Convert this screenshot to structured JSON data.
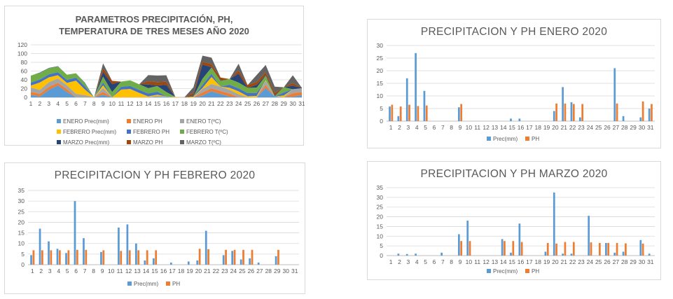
{
  "colors": {
    "enero_prec": "#5B9BD5",
    "enero_ph": "#ED7D31",
    "enero_t": "#A5A5A5",
    "febrero_prec": "#FFC000",
    "febrero_ph": "#4472C4",
    "febrero_t": "#70AD47",
    "marzo_prec": "#264478",
    "marzo_ph": "#9E480E",
    "marzo_t": "#636363",
    "grid": "#D9D9D9",
    "text": "#595959"
  },
  "chart_data": [
    {
      "type": "area",
      "title": "PARAMETROS PRECIPITACIÓN, PH, TEMPERATURA DE TRES MESES AÑO 2020",
      "title_line1": "PARAMETROS PRECIPITACIÓN, PH,",
      "title_line2": "TEMPERATURA DE TRES MESES AÑO 2020",
      "stacked": true,
      "x": [
        1,
        2,
        3,
        4,
        5,
        6,
        7,
        8,
        9,
        10,
        11,
        12,
        13,
        14,
        15,
        16,
        17,
        18,
        19,
        20,
        21,
        22,
        23,
        24,
        25,
        26,
        27,
        28,
        29,
        30,
        31
      ],
      "ylim": [
        0,
        120
      ],
      "yticks": [
        0,
        20,
        40,
        60,
        80,
        100,
        120
      ],
      "grid": true,
      "legend_position": "bottom",
      "series": [
        {
          "name": "ENERO Prec(mm)",
          "color": "#5B9BD5",
          "values": [
            5.8,
            2,
            17,
            27,
            12,
            0,
            0,
            0,
            5.5,
            0,
            0,
            0,
            0,
            0,
            1,
            1,
            0,
            0,
            0,
            4,
            13.5,
            7.5,
            1.5,
            0,
            0,
            0,
            21,
            2,
            0,
            1.5,
            5
          ]
        },
        {
          "name": "ENERO PH",
          "color": "#ED7D31",
          "values": [
            6.5,
            5.8,
            6.5,
            6,
            6.2,
            0,
            0,
            0,
            6.8,
            0,
            0,
            0,
            0,
            0,
            0,
            0,
            0,
            0,
            0,
            7,
            7,
            6.8,
            6.8,
            0,
            0,
            0,
            7,
            0,
            0,
            7.8,
            6.8
          ]
        },
        {
          "name": "ENERO T(ºC)",
          "color": "#A5A5A5",
          "values": [
            10,
            9,
            11,
            10,
            9,
            8,
            5,
            0,
            9,
            0,
            0,
            0,
            0,
            0,
            2,
            1,
            0,
            0,
            0,
            8,
            10,
            10,
            9,
            7,
            0,
            0,
            10,
            0,
            0,
            9,
            9
          ]
        },
        {
          "name": "FEBRERO Prec(mm)",
          "color": "#FFC000",
          "values": [
            4.5,
            17,
            11,
            7.5,
            5.5,
            30,
            12.5,
            0,
            6,
            0,
            17.5,
            19,
            10,
            2,
            3,
            0,
            1,
            0,
            1.5,
            2,
            16,
            0,
            4.5,
            6.5,
            2.5,
            3,
            1,
            0,
            4,
            0,
            0
          ]
        },
        {
          "name": "FEBRERO PH",
          "color": "#4472C4",
          "values": [
            6.8,
            6.8,
            6.8,
            6.8,
            6.8,
            7,
            7,
            0,
            6.8,
            0,
            6.5,
            6.8,
            6.8,
            6.8,
            6.8,
            0,
            0,
            0,
            0,
            7.5,
            7.3,
            0,
            7,
            7,
            7,
            7,
            0,
            0,
            7,
            0,
            0
          ]
        },
        {
          "name": "FEBRERO T(ºC)",
          "color": "#70AD47",
          "values": [
            16,
            15,
            14,
            13,
            12,
            10,
            7,
            0,
            13,
            12,
            12,
            13,
            13,
            12,
            13,
            10,
            0,
            0,
            0,
            14,
            14,
            13,
            13,
            13,
            12,
            12,
            10,
            0,
            12,
            0,
            0
          ]
        },
        {
          "name": "MARZO Prec(mm)",
          "color": "#264478",
          "values": [
            0,
            1,
            0.8,
            1,
            0,
            0,
            1.5,
            0,
            11,
            18,
            0,
            0,
            0,
            8.5,
            1.5,
            16.5,
            0,
            0,
            2,
            32.5,
            1,
            1,
            0,
            20.5,
            0,
            6.5,
            1.5,
            2,
            0,
            8,
            1
          ]
        },
        {
          "name": "MARZO PH",
          "color": "#9E480E",
          "values": [
            0,
            0,
            0,
            0,
            0,
            0,
            0,
            0,
            7.5,
            7.5,
            0,
            0,
            0,
            7.5,
            7.5,
            7,
            0,
            0,
            6.5,
            6.2,
            7,
            7,
            0,
            6.8,
            6.5,
            6.5,
            6.5,
            6.3,
            0,
            6.2,
            0
          ]
        },
        {
          "name": "MARZO T(ºC)",
          "color": "#636363",
          "values": [
            0,
            0,
            0,
            0,
            0,
            0,
            0,
            0,
            12,
            0,
            0,
            0,
            0,
            14,
            15,
            15,
            0,
            0,
            13,
            14,
            15,
            0,
            0,
            16,
            0,
            16,
            17,
            14,
            0,
            18,
            0
          ]
        }
      ]
    },
    {
      "type": "bar",
      "title": "PRECIPITACION Y PH ENERO 2020",
      "categories": [
        "1",
        "2",
        "3",
        "4",
        "5",
        "6",
        "7",
        "8",
        "9",
        "10",
        "11",
        "12",
        "13",
        "14",
        "15",
        "16",
        "17",
        "18",
        "19",
        "20",
        "21",
        "22",
        "23",
        "24",
        "25",
        "26",
        "27",
        "28",
        "29",
        "30",
        "31"
      ],
      "ylim": [
        0,
        30
      ],
      "yticks": [
        0,
        5,
        10,
        15,
        20,
        25,
        30
      ],
      "grid": true,
      "legend_position": "bottom",
      "series": [
        {
          "name": "Prec(mm)",
          "color": "#5B9BD5",
          "values": [
            5.8,
            2,
            17,
            27,
            12,
            0,
            0,
            0,
            5.5,
            0,
            0,
            0,
            0,
            0,
            1,
            1,
            0,
            0,
            0,
            4,
            13.5,
            7.5,
            1.5,
            0,
            0,
            0,
            21,
            2,
            0,
            1.5,
            5
          ]
        },
        {
          "name": "PH",
          "color": "#ED7D31",
          "values": [
            6.5,
            5.8,
            6.5,
            6,
            6.2,
            0,
            0,
            0,
            6.8,
            0,
            0,
            0,
            0,
            0,
            0,
            0,
            0,
            0,
            0,
            7,
            7,
            6.8,
            6.8,
            0,
            0,
            0,
            7,
            0,
            0,
            7.8,
            6.8
          ]
        }
      ]
    },
    {
      "type": "bar",
      "title": "PRECIPITACION Y PH FEBRERO 2020",
      "categories": [
        "1",
        "2",
        "3",
        "4",
        "5",
        "6",
        "7",
        "8",
        "9",
        "10",
        "11",
        "12",
        "13",
        "14",
        "15",
        "16",
        "17",
        "18",
        "19",
        "20",
        "21",
        "22",
        "23",
        "24",
        "25",
        "26",
        "27",
        "28",
        "29",
        "30",
        "31"
      ],
      "ylim": [
        0,
        35
      ],
      "yticks": [
        0,
        5,
        10,
        15,
        20,
        25,
        30,
        35
      ],
      "grid": true,
      "legend_position": "bottom",
      "series": [
        {
          "name": "Prec(mm)",
          "color": "#5B9BD5",
          "values": [
            4.5,
            17,
            11,
            7.5,
            5.5,
            30,
            12.5,
            0,
            6,
            0,
            17.5,
            19,
            10,
            2,
            3,
            0,
            1,
            0,
            1.5,
            2,
            16,
            0,
            4.5,
            6.5,
            2.5,
            3,
            1,
            0,
            4,
            0,
            0
          ]
        },
        {
          "name": "PH",
          "color": "#ED7D31",
          "values": [
            6.8,
            6.8,
            6.8,
            6.8,
            6.8,
            7,
            7,
            0,
            6.8,
            0,
            6.5,
            6.8,
            6.8,
            6.8,
            6.8,
            0,
            0,
            0,
            0,
            7.5,
            7.3,
            0,
            7,
            7,
            7,
            7,
            0,
            0,
            7,
            0,
            0
          ]
        }
      ]
    },
    {
      "type": "bar",
      "title": "PRECIPITACION Y PH MARZO 2020",
      "categories": [
        "1",
        "2",
        "3",
        "4",
        "5",
        "6",
        "7",
        "8",
        "9",
        "10",
        "11",
        "12",
        "13",
        "14",
        "15",
        "16",
        "17",
        "18",
        "19",
        "20",
        "21",
        "22",
        "23",
        "24",
        "25",
        "26",
        "27",
        "28",
        "29",
        "30",
        "31"
      ],
      "ylim": [
        0,
        35
      ],
      "yticks": [
        0,
        5,
        10,
        15,
        20,
        25,
        30,
        35
      ],
      "grid": true,
      "legend_position": "bottom",
      "series": [
        {
          "name": "Prec(mm)",
          "color": "#5B9BD5",
          "values": [
            0,
            1,
            0.8,
            1,
            0,
            0,
            1.5,
            0,
            11,
            18,
            0,
            0,
            0,
            8.5,
            1.5,
            16.5,
            0,
            0,
            2,
            32.5,
            1,
            1,
            0,
            20.5,
            0,
            6.5,
            1.5,
            2,
            0,
            8,
            1
          ]
        },
        {
          "name": "PH",
          "color": "#ED7D31",
          "values": [
            0,
            0,
            0,
            0,
            0,
            0,
            0,
            0,
            7.5,
            7.5,
            0,
            0,
            0,
            7.5,
            7.5,
            7,
            0,
            0,
            6.5,
            6.2,
            7,
            7,
            0,
            6.8,
            6.5,
            6.5,
            6.5,
            6.3,
            0,
            6.2,
            0
          ]
        }
      ]
    }
  ]
}
